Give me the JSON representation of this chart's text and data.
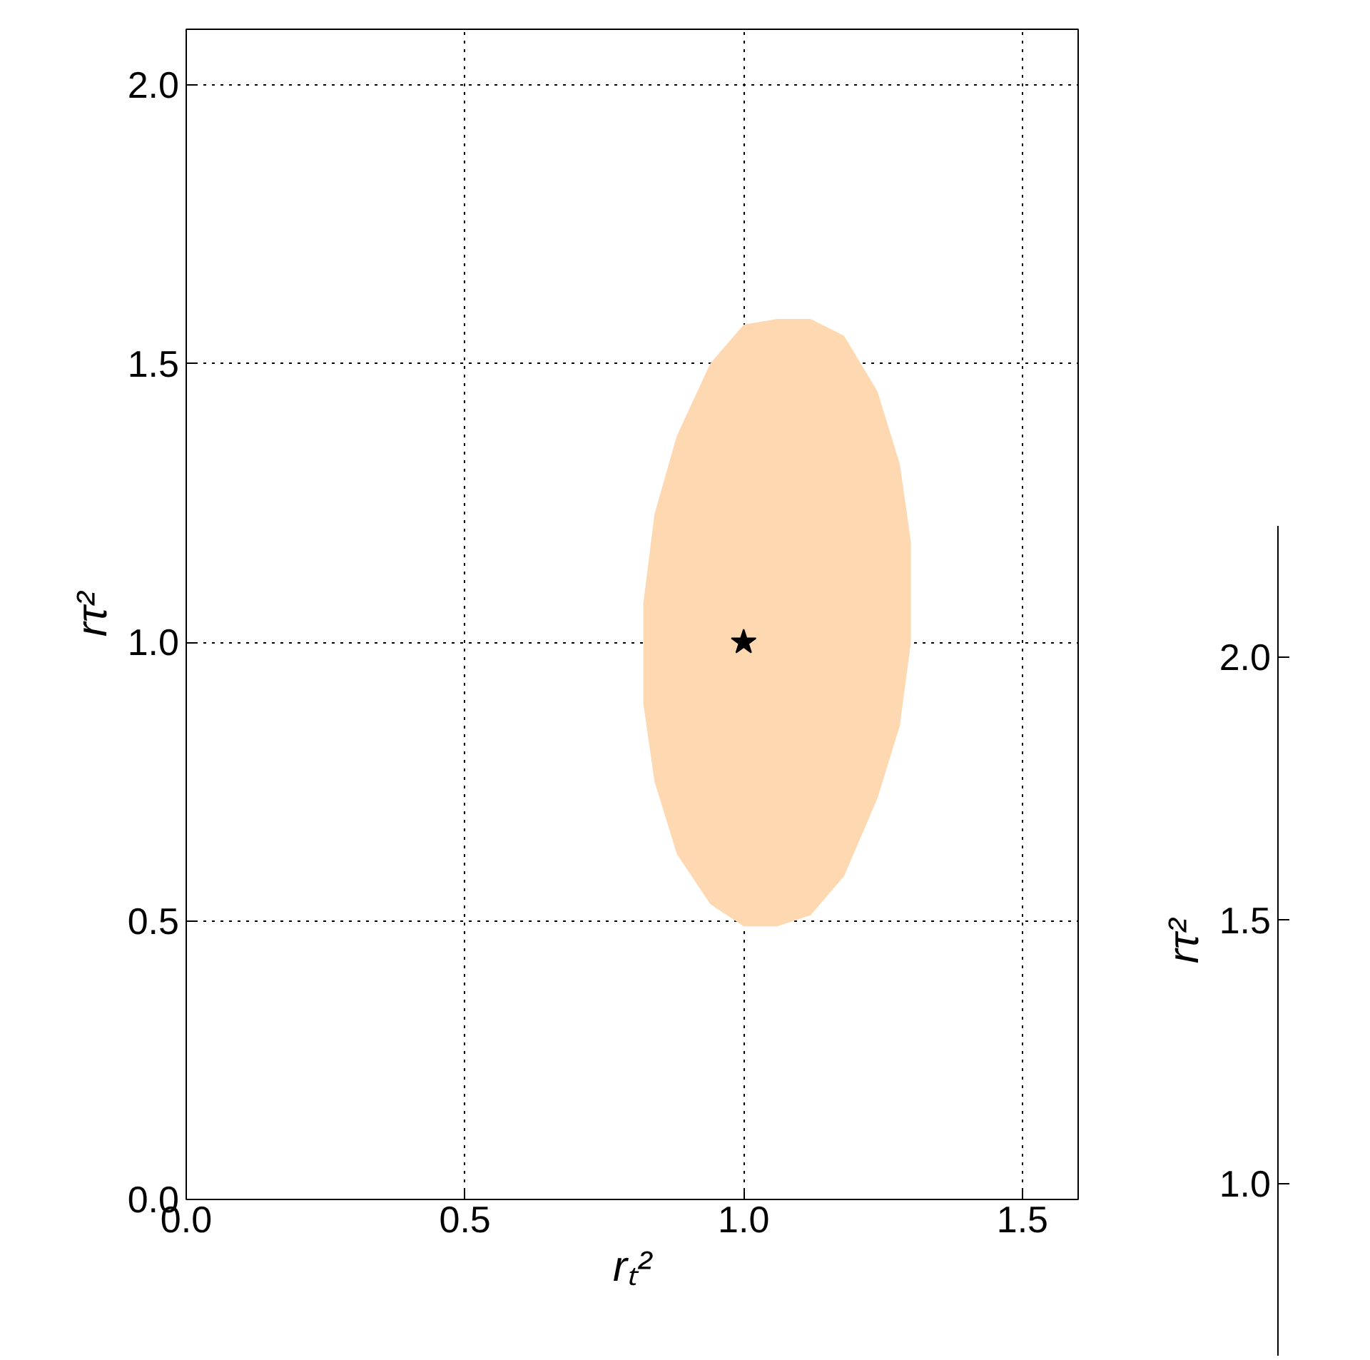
{
  "chart_data": [
    {
      "type": "area",
      "xlabel": "rₜ²",
      "ylabel": "rτ²",
      "xlim": [
        0,
        1.6
      ],
      "ylim": [
        0,
        2.1
      ],
      "xticks": [
        {
          "value": 0,
          "label": "0.0"
        },
        {
          "value": 0.5,
          "label": "0.5"
        },
        {
          "value": 1,
          "label": "1.0"
        },
        {
          "value": 1.5,
          "label": "1.5"
        }
      ],
      "yticks": [
        {
          "value": 0,
          "label": "0.0"
        },
        {
          "value": 0.5,
          "label": "0.5"
        },
        {
          "value": 1,
          "label": "1.0"
        },
        {
          "value": 1.5,
          "label": "1.5"
        },
        {
          "value": 2,
          "label": "2.0"
        }
      ],
      "grid": true,
      "series": [
        {
          "type": "area",
          "color": "#fed8b1",
          "x": [
            0.82,
            0.84,
            0.88,
            0.94,
            1.0,
            1.06,
            1.12,
            1.18,
            1.24,
            1.28,
            1.3,
            1.3,
            1.28,
            1.24,
            1.18,
            1.12,
            1.06,
            1.0,
            0.94,
            0.88,
            0.84,
            0.82
          ],
          "values": [
            1.07,
            1.23,
            1.37,
            1.5,
            1.57,
            1.58,
            1.58,
            1.55,
            1.45,
            1.32,
            1.18,
            1.0,
            0.85,
            0.72,
            0.58,
            0.51,
            0.49,
            0.49,
            0.53,
            0.62,
            0.75,
            0.89
          ]
        },
        {
          "type": "scatter",
          "marker": "star",
          "color": "#000000",
          "x": [
            1.0
          ],
          "values": [
            1.0
          ]
        }
      ]
    },
    {
      "type": "other",
      "ylabel": "rτ²",
      "annotations": [
        "2.0",
        "1.5",
        "1.0"
      ]
    }
  ]
}
